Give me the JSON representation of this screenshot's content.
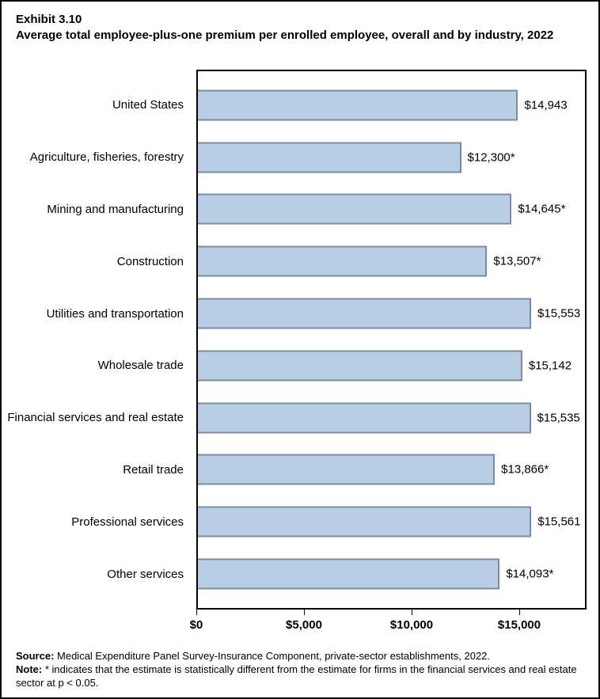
{
  "title": {
    "exhibit": "Exhibit 3.10",
    "text": "Average total employee-plus-one premium per enrolled employee, overall and by industry, 2022"
  },
  "chart_data": {
    "type": "bar",
    "orientation": "horizontal",
    "title": "Exhibit 3.10",
    "subtitle": "Average total employee-plus-one premium per enrolled employee, overall and by industry, 2022",
    "categories": [
      "United States",
      "Agriculture, fisheries, forestry",
      "Mining and manufacturing",
      "Construction",
      "Utilities and transportation",
      "Wholesale trade",
      "Financial services and real estate",
      "Retail trade",
      "Professional services",
      "Other services"
    ],
    "values": [
      14943,
      12300,
      14645,
      13507,
      15553,
      15142,
      15535,
      13866,
      15561,
      14093
    ],
    "value_labels": [
      "$14,943",
      "$12,300*",
      "$14,645*",
      "$13,507*",
      "$15,553",
      "$15,142",
      "$15,535",
      "$13,866*",
      "$15,561",
      "$14,093*"
    ],
    "xlabel": "",
    "ylabel": "",
    "xlim": [
      0,
      18125
    ],
    "xticks": [
      {
        "value": 0,
        "label": "$0"
      },
      {
        "value": 5000,
        "label": "$5,000"
      },
      {
        "value": 10000,
        "label": "$10,000"
      },
      {
        "value": 15000,
        "label": "$15,000"
      }
    ],
    "grid": false,
    "legend": "none",
    "bar_fill": "#B9CDE5",
    "bar_border": "#7F8CA0"
  },
  "footer": {
    "source_label": "Source:",
    "source_text": " Medical Expenditure Panel Survey-Insurance Component, private-sector establishments, 2022.",
    "note_label": "Note:",
    "note_text": "  * indicates that the estimate is statistically different from the estimate for firms in the financial services and real estate sector at p < 0.05."
  }
}
